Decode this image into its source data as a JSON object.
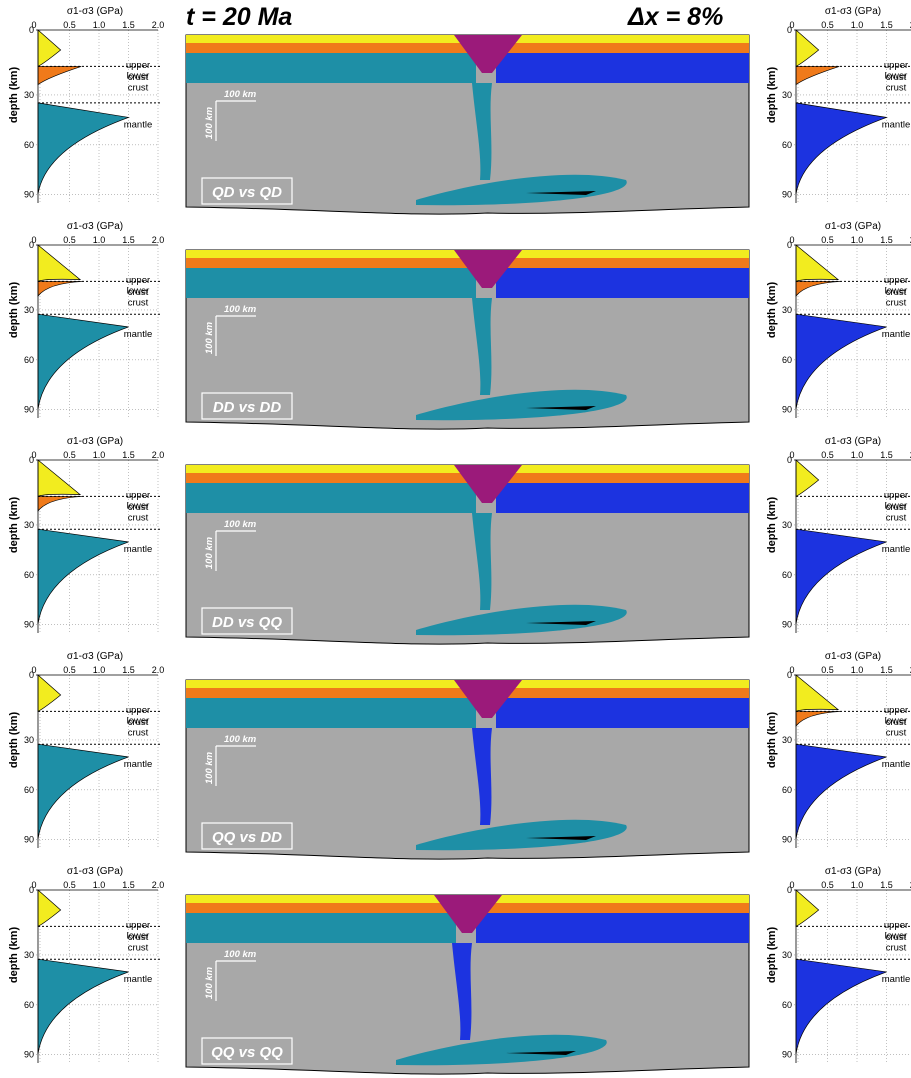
{
  "header": {
    "time_label": "t = 20 Ma",
    "dx_label": "Δx = 8%"
  },
  "colors": {
    "upper_crust": "#f2ec1f",
    "lower_crust": "#f07a1a",
    "left_mantle": "#1e8fa6",
    "right_mantle": "#1c33e0",
    "asthenosphere": "#a8a8a8",
    "sediment": "#9b1a7a"
  },
  "profile_axes": {
    "xlabel": "σ1-σ3 (GPa)",
    "xticks": [
      "0",
      "0.5",
      "1.0",
      "1.5",
      "2.0"
    ],
    "xticks_values": [
      0,
      0.5,
      1.0,
      1.5,
      2.0
    ],
    "ylabel": "depth (km)",
    "yticks": [
      "0",
      "30",
      "60",
      "90"
    ],
    "ytick_values": [
      0,
      30,
      60,
      90
    ],
    "xlim": [
      0,
      2.0
    ],
    "ylim": [
      0,
      95
    ]
  },
  "layer_labels": {
    "upper": "upper",
    "crust1": "crust",
    "lower": "lower",
    "crust2": "crust",
    "mantle": "mantle"
  },
  "scale_bar": {
    "horizontal": "100 km",
    "vertical": "100 km"
  },
  "panels": [
    {
      "label": "QD vs QD",
      "left": {
        "uc_peak": 0.35,
        "uc_depth": 11,
        "lc_peak": 0.7,
        "lc_depth": 26,
        "m_peak": 1.5,
        "m_depth": 48,
        "moho": 40,
        "crust_boundary": 20
      },
      "right": {
        "uc_peak": 0.35,
        "uc_depth": 11,
        "lc_peak": 0.7,
        "lc_depth": 26,
        "m_peak": 1.5,
        "m_depth": 48,
        "moho": 40,
        "crust_boundary": 20
      }
    },
    {
      "label": "DD vs DD",
      "left": {
        "uc_peak": 0.68,
        "uc_depth": 19,
        "lc_peak": 0.72,
        "lc_depth": 21,
        "m_peak": 1.5,
        "m_depth": 45,
        "moho": 38,
        "crust_boundary": 20
      },
      "right": {
        "uc_peak": 0.68,
        "uc_depth": 19,
        "lc_peak": 0.72,
        "lc_depth": 21,
        "m_peak": 1.5,
        "m_depth": 45,
        "moho": 38,
        "crust_boundary": 20
      }
    },
    {
      "label": "DD vs QQ",
      "left": {
        "uc_peak": 0.68,
        "uc_depth": 19,
        "lc_peak": 0.72,
        "lc_depth": 21,
        "m_peak": 1.5,
        "m_depth": 45,
        "moho": 38,
        "crust_boundary": 20
      },
      "right": {
        "uc_peak": 0.35,
        "uc_depth": 11,
        "lc_peak": 0.0,
        "lc_depth": 30,
        "m_peak": 1.5,
        "m_depth": 45,
        "moho": 38,
        "crust_boundary": 20
      }
    },
    {
      "label": "QQ vs DD",
      "left": {
        "uc_peak": 0.35,
        "uc_depth": 11,
        "lc_peak": 0.0,
        "lc_depth": 30,
        "m_peak": 1.5,
        "m_depth": 45,
        "moho": 38,
        "crust_boundary": 20
      },
      "right": {
        "uc_peak": 0.68,
        "uc_depth": 19,
        "lc_peak": 0.72,
        "lc_depth": 21,
        "m_peak": 1.5,
        "m_depth": 45,
        "moho": 38,
        "crust_boundary": 20
      }
    },
    {
      "label": "QQ vs QQ",
      "left": {
        "uc_peak": 0.35,
        "uc_depth": 11,
        "lc_peak": 0.0,
        "lc_depth": 30,
        "m_peak": 1.5,
        "m_depth": 45,
        "moho": 38,
        "crust_boundary": 20
      },
      "right": {
        "uc_peak": 0.35,
        "uc_depth": 11,
        "lc_peak": 0.0,
        "lc_depth": 30,
        "m_peak": 1.5,
        "m_depth": 45,
        "moho": 38,
        "crust_boundary": 20
      }
    }
  ]
}
